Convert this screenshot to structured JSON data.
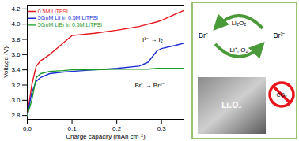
{
  "chart_data": {
    "type": "line",
    "x_label": "Charge capacity (mAh cm⁻²)",
    "y_label": "Voltage (V)",
    "x": [
      0,
      0.01,
      0.02,
      0.03,
      0.05,
      0.08,
      0.1,
      0.15,
      0.2,
      0.25,
      0.27,
      0.29,
      0.3,
      0.33,
      0.35
    ],
    "series": [
      {
        "name": "0.5M LiTFSI",
        "color": "#e8141b",
        "values": [
          2.8,
          3.2,
          3.45,
          3.52,
          3.6,
          3.75,
          3.85,
          3.88,
          3.92,
          3.97,
          4.0,
          4.03,
          4.05,
          4.13,
          4.18
        ]
      },
      {
        "name": "50mM LiI in 0.5M LiTFSI",
        "color": "#1d2fd6",
        "values": [
          2.8,
          3.1,
          3.25,
          3.3,
          3.35,
          3.37,
          3.38,
          3.4,
          3.42,
          3.45,
          3.5,
          3.65,
          3.68,
          3.72,
          3.75
        ]
      },
      {
        "name": "50mM LiBr in 0.5M LiTFSI",
        "color": "#1a9a2a",
        "values": [
          2.8,
          3.0,
          3.3,
          3.35,
          3.38,
          3.39,
          3.4,
          3.4,
          3.41,
          3.41,
          3.41,
          3.42,
          3.42,
          3.42,
          3.42
        ]
      }
    ],
    "xlim": [
      0,
      0.35
    ],
    "ylim": [
      2.75,
      4.25
    ],
    "xticks": [
      {
        "value": 0,
        "label": "0.0"
      },
      0.1,
      0.2,
      0.3
    ],
    "yticks": [
      2.8,
      {
        "value": 3,
        "label": "3.0"
      },
      3.2,
      3.4,
      3.6,
      3.8,
      {
        "value": 4,
        "label": "4.0"
      },
      4.2
    ],
    "legend": "upper-left",
    "grid": false,
    "annotations": [
      "I³⁻ → I₂",
      "Br⁻ → Br³⁻"
    ]
  },
  "diagram": {
    "cycle": {
      "left": "Br⁻",
      "right": "Br³⁻",
      "top": "Li₂O₂",
      "bottom": "Li⁺, O₂"
    },
    "image_label": "Li₂O₂",
    "forbidden": "CO₂"
  }
}
